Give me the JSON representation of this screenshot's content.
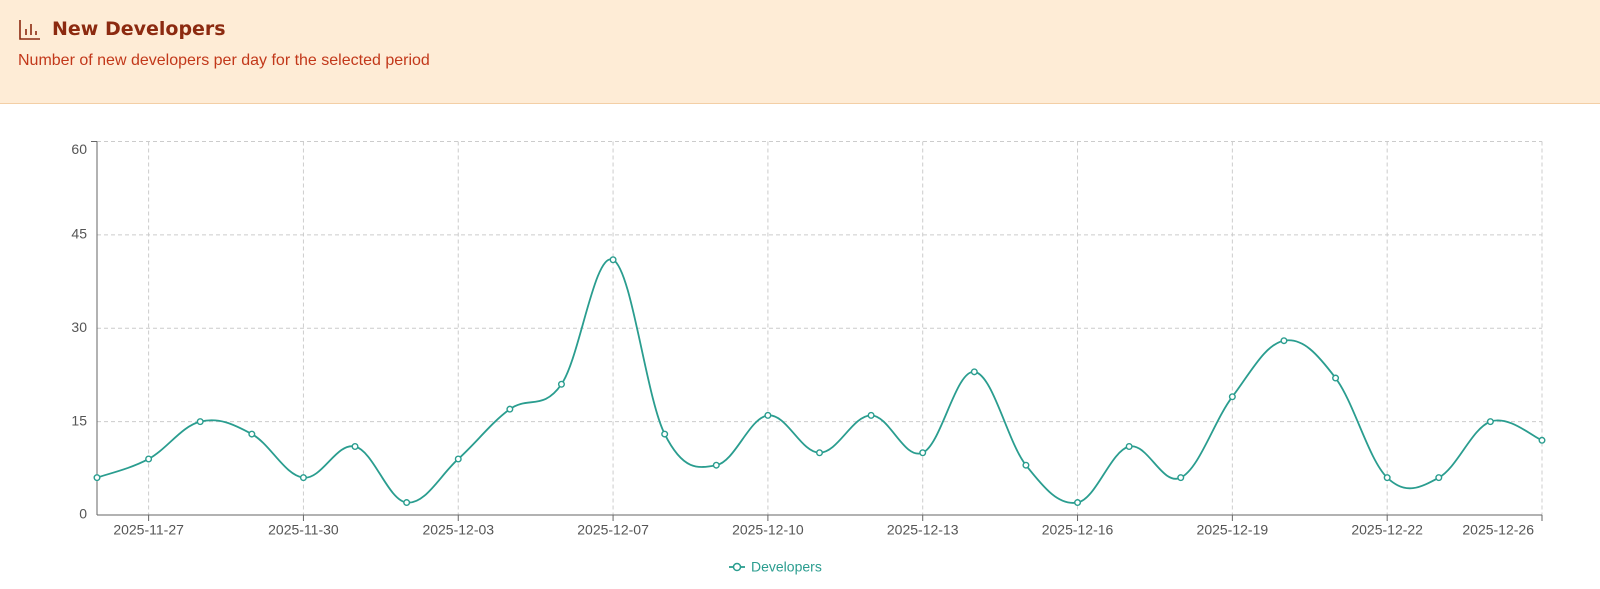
{
  "header": {
    "title": "New Developers",
    "subtitle": "Number of new developers per day for the selected period"
  },
  "chart_data": {
    "type": "line",
    "categories": [
      null,
      "2025-11-27",
      null,
      null,
      "2025-11-30",
      null,
      null,
      "2025-12-03",
      null,
      null,
      "2025-12-07",
      null,
      null,
      "2025-12-10",
      null,
      null,
      "2025-12-13",
      null,
      null,
      "2025-12-16",
      null,
      null,
      "2025-12-19",
      null,
      null,
      "2025-12-22",
      null,
      null,
      "2025-12-26"
    ],
    "series": [
      {
        "name": "Developers",
        "color": "#2a9d8f",
        "values": [
          6,
          9,
          15,
          13,
          6,
          11,
          2,
          9,
          17,
          21,
          41,
          13,
          8,
          16,
          10,
          16,
          10,
          23,
          8,
          2,
          11,
          6,
          19,
          28,
          22,
          6,
          6,
          15,
          12
        ]
      }
    ],
    "ylim": [
      0,
      60
    ],
    "yticks": [
      0,
      15,
      30,
      45,
      60
    ],
    "grid": true,
    "legend": "bottom"
  }
}
